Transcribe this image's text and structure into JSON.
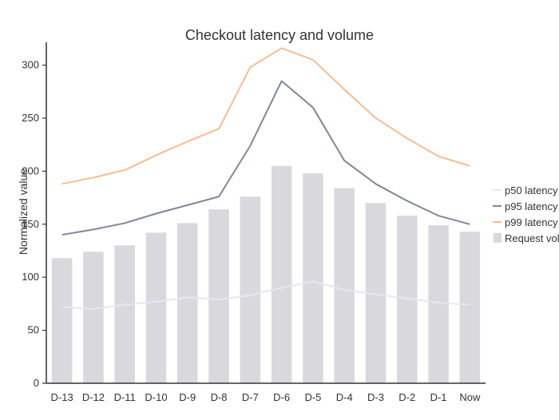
{
  "chart_data": {
    "type": "bar",
    "title": "Checkout latency and volume",
    "xlabel": "",
    "ylabel": "Normalized value",
    "ylim": [
      0,
      320
    ],
    "yticks": [
      0,
      50,
      100,
      150,
      200,
      250,
      300
    ],
    "grid": false,
    "legend_position": "right",
    "categories": [
      "D-13",
      "D-12",
      "D-11",
      "D-10",
      "D-9",
      "D-8",
      "D-7",
      "D-6",
      "D-5",
      "D-4",
      "D-3",
      "D-2",
      "D-1",
      "Now"
    ],
    "series": [
      {
        "name": "p50 latency",
        "type": "line",
        "color": "#e6e6f5",
        "values": [
          72,
          70,
          74,
          77,
          81,
          79,
          83,
          90,
          96,
          88,
          84,
          80,
          76,
          74
        ]
      },
      {
        "name": "p95 latency",
        "type": "line",
        "color": "#7f8797",
        "values": [
          140,
          145,
          151,
          160,
          168,
          176,
          224,
          285,
          260,
          210,
          188,
          172,
          158,
          150
        ]
      },
      {
        "name": "p99 latency",
        "type": "line",
        "color": "#f9bc95",
        "values": [
          188,
          194,
          201,
          215,
          228,
          240,
          298,
          316,
          305,
          277,
          250,
          231,
          214,
          205
        ]
      },
      {
        "name": "Request volume",
        "type": "bar",
        "color": "#d9d9dd",
        "values": [
          118,
          124,
          130,
          142,
          151,
          164,
          176,
          205,
          198,
          184,
          170,
          158,
          149,
          143
        ]
      }
    ]
  }
}
